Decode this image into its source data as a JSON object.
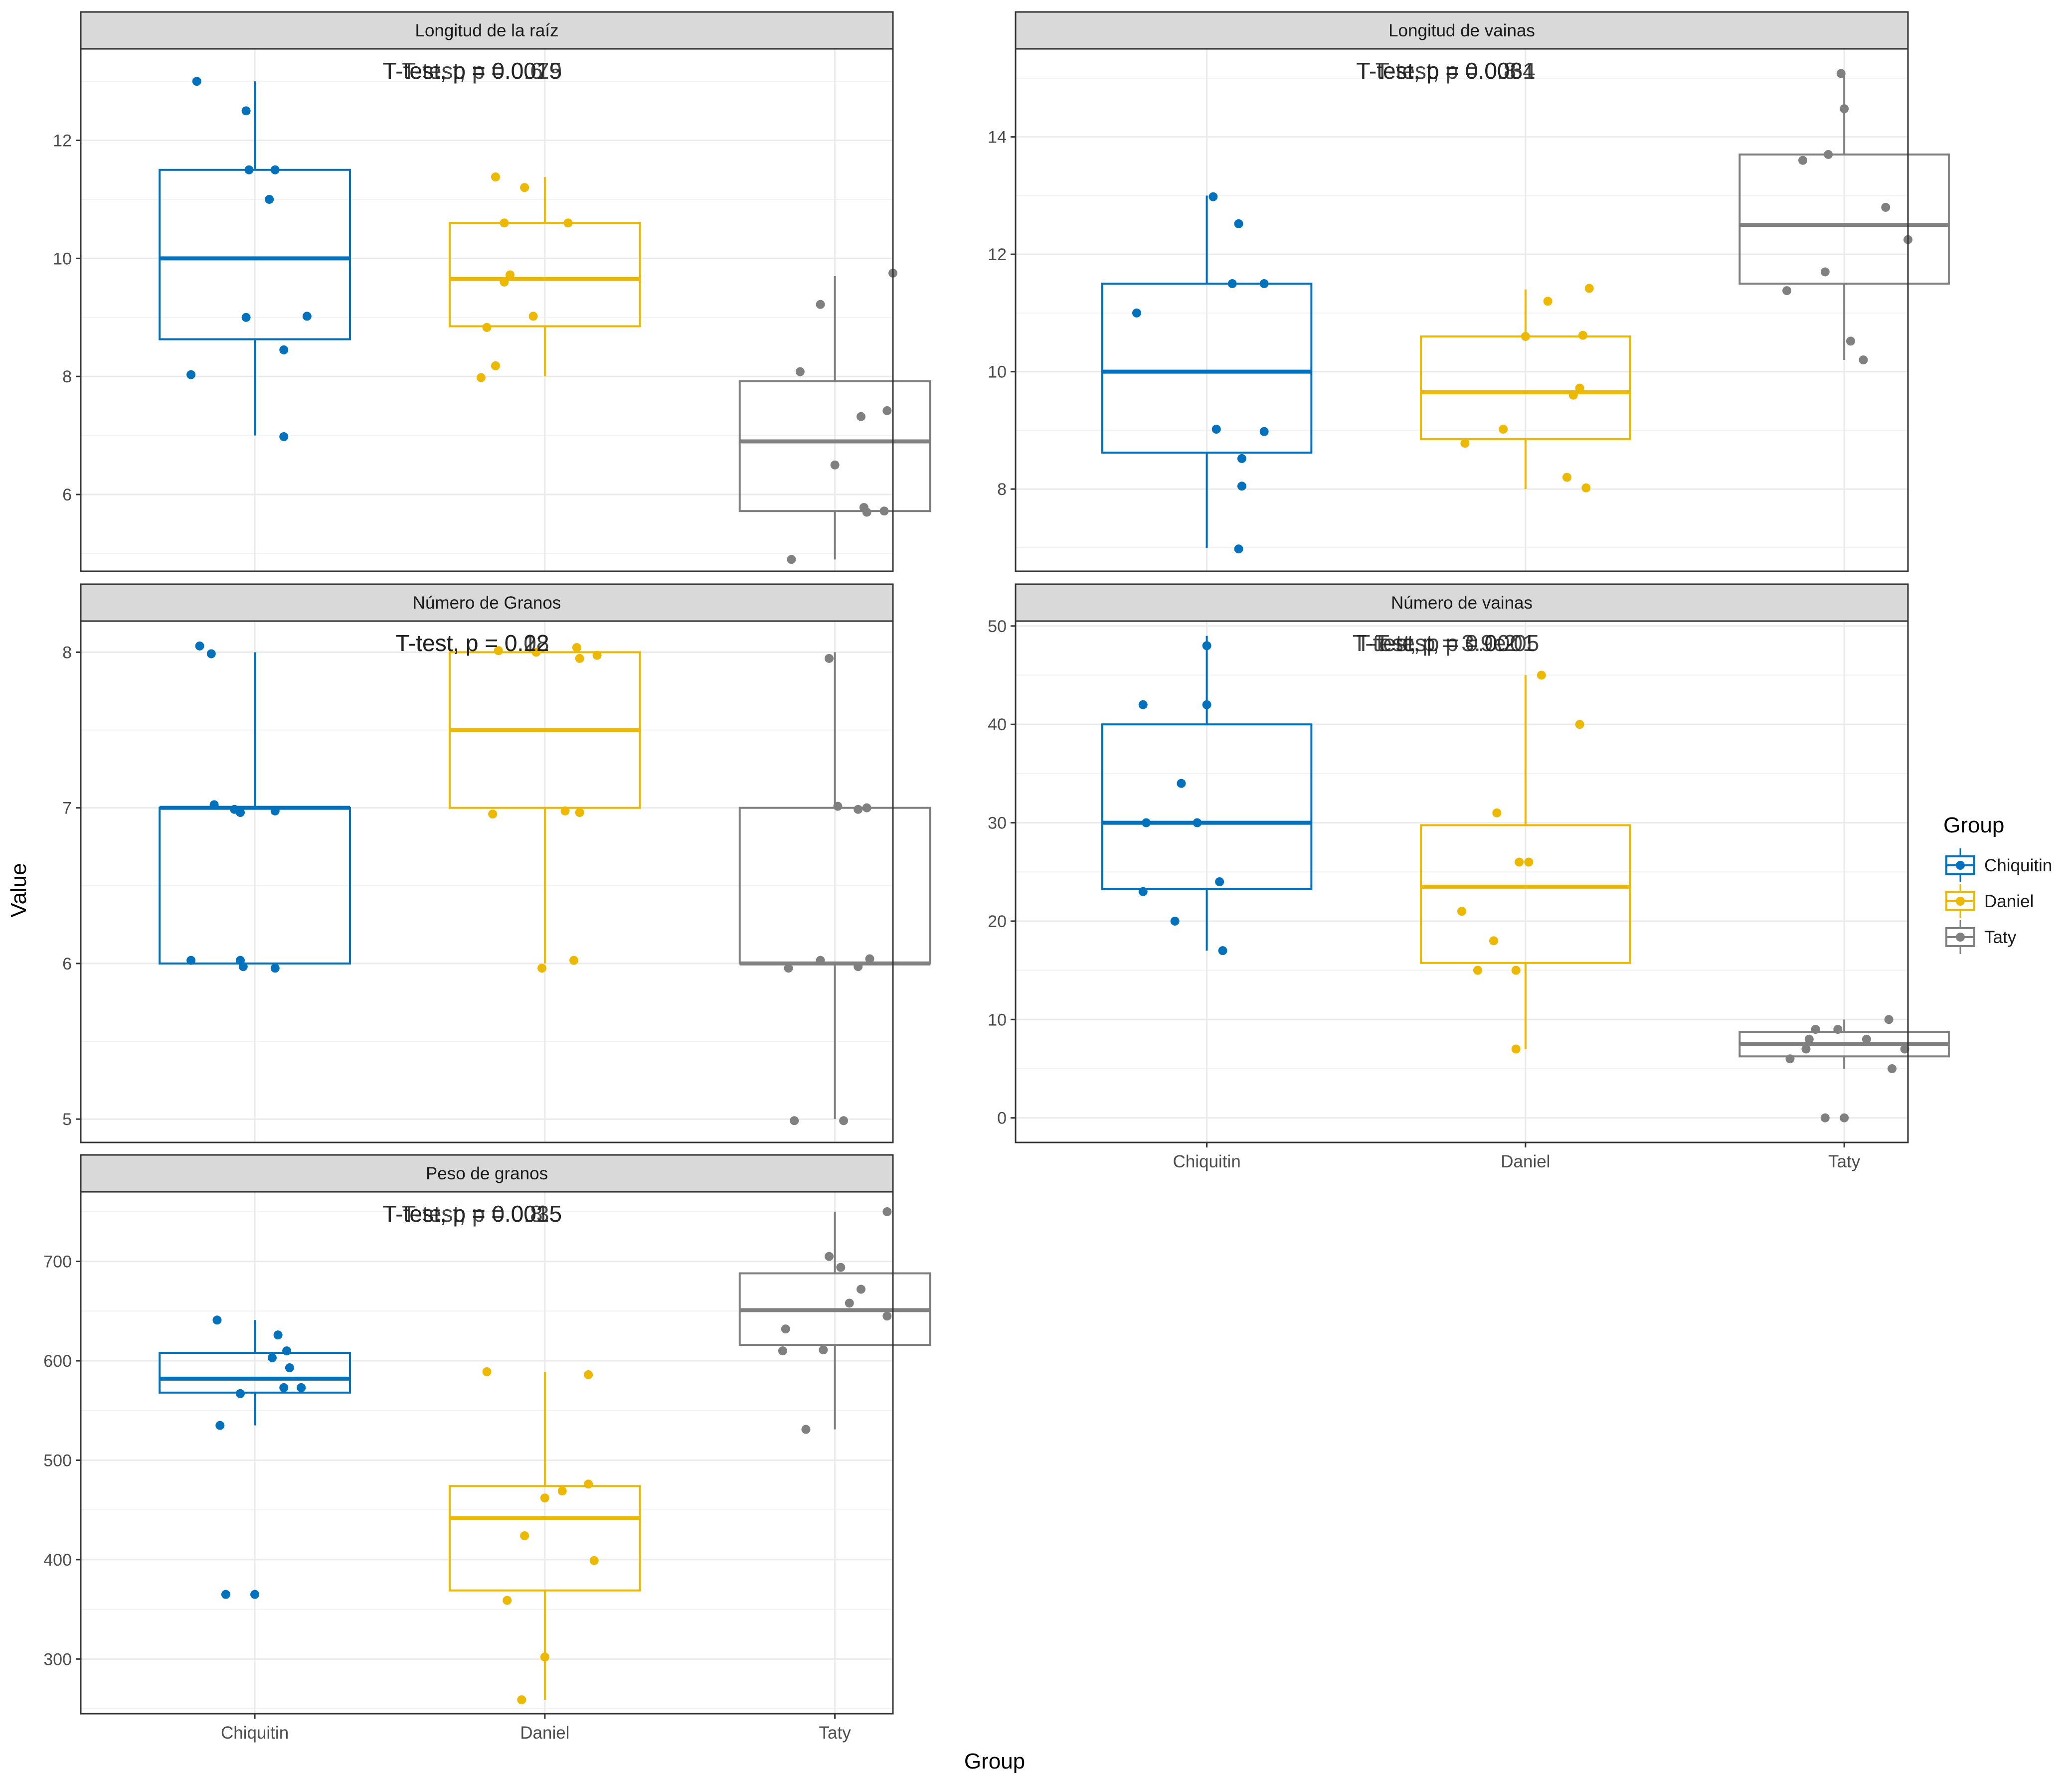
{
  "groups": [
    "Chiquitin",
    "Daniel",
    "Taty"
  ],
  "colors": {
    "Chiquitin": "#0072BD",
    "Daniel": "#EDB800",
    "Taty": "#808080"
  },
  "axis": {
    "xlabel": "Group",
    "ylabel": "Value"
  },
  "legend": {
    "title": "Group",
    "placement": "right"
  },
  "chart_data": [
    {
      "type": "boxplot",
      "panel": 0,
      "title": "Longitud de la raíz",
      "ylim": [
        4.7,
        13.55
      ],
      "yticks": [
        6,
        8,
        10,
        12
      ],
      "annotations": [
        "T-test, p = 0.0015",
        "T-test, p = 0.0079",
        "T-test, p = 0.6"
      ],
      "boxes": [
        {
          "group": "Chiquitin",
          "q1": 8.63,
          "median": 10.0,
          "q3": 11.5,
          "whisker_low": 7.0,
          "whisker_high": 13.0
        },
        {
          "group": "Daniel",
          "q1": 8.85,
          "median": 9.65,
          "q3": 10.6,
          "whisker_low": 8.0,
          "whisker_high": 11.38
        },
        {
          "group": "Taty",
          "q1": 5.72,
          "median": 6.9,
          "q3": 7.92,
          "whisker_low": 4.9,
          "whisker_high": 9.7
        }
      ],
      "points": [
        {
          "group": "Chiquitin",
          "x": 0.8,
          "y": 13.0
        },
        {
          "group": "Chiquitin",
          "x": 0.97,
          "y": 12.5
        },
        {
          "group": "Chiquitin",
          "x": 0.98,
          "y": 11.5
        },
        {
          "group": "Chiquitin",
          "x": 1.07,
          "y": 11.5
        },
        {
          "group": "Chiquitin",
          "x": 1.05,
          "y": 11.0
        },
        {
          "group": "Chiquitin",
          "x": 0.97,
          "y": 9.0
        },
        {
          "group": "Chiquitin",
          "x": 1.18,
          "y": 9.02
        },
        {
          "group": "Chiquitin",
          "x": 1.1,
          "y": 8.45
        },
        {
          "group": "Chiquitin",
          "x": 0.78,
          "y": 8.03
        },
        {
          "group": "Chiquitin",
          "x": 1.1,
          "y": 6.98
        },
        {
          "group": "Daniel",
          "x": 1.83,
          "y": 11.38
        },
        {
          "group": "Daniel",
          "x": 1.93,
          "y": 11.2
        },
        {
          "group": "Daniel",
          "x": 1.86,
          "y": 10.6
        },
        {
          "group": "Daniel",
          "x": 2.08,
          "y": 10.6
        },
        {
          "group": "Daniel",
          "x": 1.88,
          "y": 9.72
        },
        {
          "group": "Daniel",
          "x": 1.86,
          "y": 9.6
        },
        {
          "group": "Daniel",
          "x": 1.96,
          "y": 9.02
        },
        {
          "group": "Daniel",
          "x": 1.8,
          "y": 8.83
        },
        {
          "group": "Daniel",
          "x": 1.83,
          "y": 8.18
        },
        {
          "group": "Daniel",
          "x": 1.78,
          "y": 7.98
        },
        {
          "group": "Taty",
          "x": 2.95,
          "y": 9.22
        },
        {
          "group": "Taty",
          "x": 3.2,
          "y": 9.75
        },
        {
          "group": "Taty",
          "x": 2.88,
          "y": 8.08
        },
        {
          "group": "Taty",
          "x": 3.18,
          "y": 7.42
        },
        {
          "group": "Taty",
          "x": 3.09,
          "y": 7.32
        },
        {
          "group": "Taty",
          "x": 3.0,
          "y": 6.5
        },
        {
          "group": "Taty",
          "x": 3.1,
          "y": 5.78
        },
        {
          "group": "Taty",
          "x": 3.17,
          "y": 5.72
        },
        {
          "group": "Taty",
          "x": 3.11,
          "y": 5.7
        },
        {
          "group": "Taty",
          "x": 2.85,
          "y": 4.9
        }
      ]
    },
    {
      "type": "boxplot",
      "panel": 1,
      "title": "Longitud de vainas",
      "ylim": [
        6.6,
        15.5
      ],
      "yticks": [
        8,
        10,
        12,
        14
      ],
      "annotations": [
        "T-test, p = 0.0034",
        "T-test, p = 0.0061",
        "T-test, p = 0.8"
      ],
      "boxes": [
        {
          "group": "Chiquitin",
          "q1": 8.62,
          "median": 10.0,
          "q3": 11.5,
          "whisker_low": 7.0,
          "whisker_high": 13.0
        },
        {
          "group": "Daniel",
          "q1": 8.85,
          "median": 9.65,
          "q3": 10.6,
          "whisker_low": 8.0,
          "whisker_high": 11.4
        },
        {
          "group": "Taty",
          "q1": 11.5,
          "median": 12.5,
          "q3": 13.7,
          "whisker_low": 10.2,
          "whisker_high": 15.1
        }
      ],
      "points": [
        {
          "group": "Chiquitin",
          "x": 1.02,
          "y": 12.98
        },
        {
          "group": "Chiquitin",
          "x": 1.1,
          "y": 12.52
        },
        {
          "group": "Chiquitin",
          "x": 1.08,
          "y": 11.5
        },
        {
          "group": "Chiquitin",
          "x": 1.18,
          "y": 11.5
        },
        {
          "group": "Chiquitin",
          "x": 0.78,
          "y": 11.0
        },
        {
          "group": "Chiquitin",
          "x": 1.03,
          "y": 9.02
        },
        {
          "group": "Chiquitin",
          "x": 1.18,
          "y": 8.98
        },
        {
          "group": "Chiquitin",
          "x": 1.11,
          "y": 8.52
        },
        {
          "group": "Chiquitin",
          "x": 1.11,
          "y": 8.05
        },
        {
          "group": "Chiquitin",
          "x": 1.1,
          "y": 6.98
        },
        {
          "group": "Daniel",
          "x": 2.2,
          "y": 11.42
        },
        {
          "group": "Daniel",
          "x": 2.07,
          "y": 11.2
        },
        {
          "group": "Daniel",
          "x": 2.0,
          "y": 10.6
        },
        {
          "group": "Daniel",
          "x": 2.18,
          "y": 10.62
        },
        {
          "group": "Daniel",
          "x": 2.17,
          "y": 9.72
        },
        {
          "group": "Daniel",
          "x": 2.15,
          "y": 9.6
        },
        {
          "group": "Daniel",
          "x": 1.93,
          "y": 9.02
        },
        {
          "group": "Daniel",
          "x": 1.81,
          "y": 8.78
        },
        {
          "group": "Daniel",
          "x": 2.13,
          "y": 8.2
        },
        {
          "group": "Daniel",
          "x": 2.19,
          "y": 8.02
        },
        {
          "group": "Taty",
          "x": 2.99,
          "y": 15.08
        },
        {
          "group": "Taty",
          "x": 3.0,
          "y": 14.48
        },
        {
          "group": "Taty",
          "x": 2.87,
          "y": 13.6
        },
        {
          "group": "Taty",
          "x": 2.95,
          "y": 13.7
        },
        {
          "group": "Taty",
          "x": 3.13,
          "y": 12.8
        },
        {
          "group": "Taty",
          "x": 3.2,
          "y": 12.25
        },
        {
          "group": "Taty",
          "x": 2.94,
          "y": 11.7
        },
        {
          "group": "Taty",
          "x": 2.82,
          "y": 11.38
        },
        {
          "group": "Taty",
          "x": 3.02,
          "y": 10.52
        },
        {
          "group": "Taty",
          "x": 3.06,
          "y": 10.2
        }
      ]
    },
    {
      "type": "boxplot",
      "panel": 2,
      "title": "Número de Granos",
      "ylim": [
        4.85,
        8.2
      ],
      "yticks": [
        5,
        6,
        7,
        8
      ],
      "annotations": [
        "T-test, p = 0.08",
        "T-test, p = 0.22",
        "T-test, p = 0.12"
      ],
      "boxes": [
        {
          "group": "Chiquitin",
          "q1": 6.0,
          "median": 7.0,
          "q3": 7.0,
          "whisker_low": 6.0,
          "whisker_high": 8.0
        },
        {
          "group": "Daniel",
          "q1": 7.0,
          "median": 7.5,
          "q3": 8.0,
          "whisker_low": 6.0,
          "whisker_high": 8.0
        },
        {
          "group": "Taty",
          "q1": 6.0,
          "median": 6.0,
          "q3": 7.0,
          "whisker_low": 5.0,
          "whisker_high": 8.0
        }
      ],
      "points": [
        {
          "group": "Chiquitin",
          "x": 0.81,
          "y": 8.04
        },
        {
          "group": "Chiquitin",
          "x": 0.86,
          "y": 7.02
        },
        {
          "group": "Chiquitin",
          "x": 0.93,
          "y": 6.99
        },
        {
          "group": "Chiquitin",
          "x": 0.95,
          "y": 6.97
        },
        {
          "group": "Chiquitin",
          "x": 1.07,
          "y": 6.98
        },
        {
          "group": "Chiquitin",
          "x": 0.78,
          "y": 6.02
        },
        {
          "group": "Chiquitin",
          "x": 0.95,
          "y": 6.02
        },
        {
          "group": "Chiquitin",
          "x": 0.96,
          "y": 5.98
        },
        {
          "group": "Chiquitin",
          "x": 1.07,
          "y": 5.97
        },
        {
          "group": "Chiquitin",
          "x": 0.85,
          "y": 7.99
        },
        {
          "group": "Daniel",
          "x": 1.84,
          "y": 8.01
        },
        {
          "group": "Daniel",
          "x": 1.97,
          "y": 8.0
        },
        {
          "group": "Daniel",
          "x": 2.11,
          "y": 8.03
        },
        {
          "group": "Daniel",
          "x": 2.18,
          "y": 7.98
        },
        {
          "group": "Daniel",
          "x": 2.12,
          "y": 7.96
        },
        {
          "group": "Daniel",
          "x": 1.82,
          "y": 6.96
        },
        {
          "group": "Daniel",
          "x": 2.07,
          "y": 6.98
        },
        {
          "group": "Daniel",
          "x": 2.12,
          "y": 6.97
        },
        {
          "group": "Daniel",
          "x": 1.99,
          "y": 5.97
        },
        {
          "group": "Daniel",
          "x": 2.1,
          "y": 6.02
        },
        {
          "group": "Taty",
          "x": 2.98,
          "y": 7.96
        },
        {
          "group": "Taty",
          "x": 3.01,
          "y": 7.01
        },
        {
          "group": "Taty",
          "x": 3.08,
          "y": 6.99
        },
        {
          "group": "Taty",
          "x": 3.11,
          "y": 7.0
        },
        {
          "group": "Taty",
          "x": 2.84,
          "y": 5.97
        },
        {
          "group": "Taty",
          "x": 2.95,
          "y": 6.02
        },
        {
          "group": "Taty",
          "x": 3.08,
          "y": 5.98
        },
        {
          "group": "Taty",
          "x": 3.12,
          "y": 6.03
        },
        {
          "group": "Taty",
          "x": 2.86,
          "y": 4.99
        },
        {
          "group": "Taty",
          "x": 3.03,
          "y": 4.99
        }
      ]
    },
    {
      "type": "boxplot",
      "panel": 3,
      "title": "Número de vainas",
      "ylim": [
        -2.5,
        50.5
      ],
      "yticks": [
        0,
        10,
        20,
        30,
        40,
        50
      ],
      "annotations": [
        "T-test, p = 0.2",
        "T-test, p = 3.9e-05",
        "T-test, p = 0.0001"
      ],
      "boxes": [
        {
          "group": "Chiquitin",
          "q1": 23.25,
          "median": 30.0,
          "q3": 40.0,
          "whisker_low": 17.0,
          "whisker_high": 49.0
        },
        {
          "group": "Daniel",
          "q1": 15.75,
          "median": 23.5,
          "q3": 29.75,
          "whisker_low": 7.0,
          "whisker_high": 45.0
        },
        {
          "group": "Taty",
          "q1": 6.25,
          "median": 7.5,
          "q3": 8.75,
          "whisker_low": 5.0,
          "whisker_high": 10.0
        }
      ],
      "points": [
        {
          "group": "Chiquitin",
          "x": 0.8,
          "y": 42.0
        },
        {
          "group": "Chiquitin",
          "x": 1.0,
          "y": 42.0
        },
        {
          "group": "Chiquitin",
          "x": 0.92,
          "y": 34.0
        },
        {
          "group": "Chiquitin",
          "x": 0.81,
          "y": 30.0
        },
        {
          "group": "Chiquitin",
          "x": 0.97,
          "y": 30.0
        },
        {
          "group": "Chiquitin",
          "x": 1.04,
          "y": 24.0
        },
        {
          "group": "Chiquitin",
          "x": 0.8,
          "y": 23.0
        },
        {
          "group": "Chiquitin",
          "x": 0.9,
          "y": 20.0
        },
        {
          "group": "Chiquitin",
          "x": 1.05,
          "y": 17.0
        },
        {
          "group": "Chiquitin",
          "x": 1.0,
          "y": 48.0
        },
        {
          "group": "Daniel",
          "x": 2.05,
          "y": 45.0
        },
        {
          "group": "Daniel",
          "x": 2.17,
          "y": 40.0
        },
        {
          "group": "Daniel",
          "x": 1.91,
          "y": 31.0
        },
        {
          "group": "Daniel",
          "x": 1.98,
          "y": 26.0
        },
        {
          "group": "Daniel",
          "x": 2.01,
          "y": 26.0
        },
        {
          "group": "Daniel",
          "x": 1.8,
          "y": 21.0
        },
        {
          "group": "Daniel",
          "x": 1.9,
          "y": 18.0
        },
        {
          "group": "Daniel",
          "x": 1.85,
          "y": 15.0
        },
        {
          "group": "Daniel",
          "x": 1.97,
          "y": 15.0
        },
        {
          "group": "Daniel",
          "x": 1.97,
          "y": 7.0
        },
        {
          "group": "Taty",
          "x": 3.14,
          "y": 10.0
        },
        {
          "group": "Taty",
          "x": 2.91,
          "y": 9.0
        },
        {
          "group": "Taty",
          "x": 2.98,
          "y": 9.0
        },
        {
          "group": "Taty",
          "x": 2.89,
          "y": 8.0
        },
        {
          "group": "Taty",
          "x": 3.07,
          "y": 8.0
        },
        {
          "group": "Taty",
          "x": 2.88,
          "y": 7.0
        },
        {
          "group": "Taty",
          "x": 3.19,
          "y": 7.0
        },
        {
          "group": "Taty",
          "x": 2.83,
          "y": 6.0
        },
        {
          "group": "Taty",
          "x": 3.15,
          "y": 5.0
        },
        {
          "group": "Taty",
          "x": 2.94,
          "y": 0.0
        },
        {
          "group": "Taty",
          "x": 3.0,
          "y": 0.0
        }
      ]
    },
    {
      "type": "boxplot",
      "panel": 4,
      "title": "Peso de granos",
      "ylim": [
        245,
        770
      ],
      "yticks": [
        300,
        400,
        500,
        600,
        700
      ],
      "annotations": [
        "T-test, p = 0.8",
        "T-test, p = 0.0035",
        "T-test, p = 0.0015"
      ],
      "boxes": [
        {
          "group": "Chiquitin",
          "q1": 568,
          "median": 582,
          "q3": 608,
          "whisker_low": 535,
          "whisker_high": 641
        },
        {
          "group": "Daniel",
          "q1": 369,
          "median": 442,
          "q3": 474,
          "whisker_low": 259,
          "whisker_high": 589
        },
        {
          "group": "Taty",
          "q1": 616,
          "median": 651,
          "q3": 688,
          "whisker_low": 531,
          "whisker_high": 750
        }
      ],
      "points": [
        {
          "group": "Chiquitin",
          "x": 0.87,
          "y": 641
        },
        {
          "group": "Chiquitin",
          "x": 1.08,
          "y": 626
        },
        {
          "group": "Chiquitin",
          "x": 1.11,
          "y": 610
        },
        {
          "group": "Chiquitin",
          "x": 1.06,
          "y": 603
        },
        {
          "group": "Chiquitin",
          "x": 1.12,
          "y": 593
        },
        {
          "group": "Chiquitin",
          "x": 1.1,
          "y": 573
        },
        {
          "group": "Chiquitin",
          "x": 1.16,
          "y": 573
        },
        {
          "group": "Chiquitin",
          "x": 0.95,
          "y": 567
        },
        {
          "group": "Chiquitin",
          "x": 0.88,
          "y": 535
        },
        {
          "group": "Chiquitin",
          "x": 0.9,
          "y": 365
        },
        {
          "group": "Chiquitin",
          "x": 1.0,
          "y": 365
        },
        {
          "group": "Daniel",
          "x": 1.8,
          "y": 589
        },
        {
          "group": "Daniel",
          "x": 2.15,
          "y": 586
        },
        {
          "group": "Daniel",
          "x": 2.15,
          "y": 476
        },
        {
          "group": "Daniel",
          "x": 2.06,
          "y": 469
        },
        {
          "group": "Daniel",
          "x": 2.0,
          "y": 462
        },
        {
          "group": "Daniel",
          "x": 1.93,
          "y": 424
        },
        {
          "group": "Daniel",
          "x": 2.17,
          "y": 399
        },
        {
          "group": "Daniel",
          "x": 1.87,
          "y": 359
        },
        {
          "group": "Daniel",
          "x": 2.0,
          "y": 302
        },
        {
          "group": "Daniel",
          "x": 1.92,
          "y": 259
        },
        {
          "group": "Taty",
          "x": 3.18,
          "y": 750
        },
        {
          "group": "Taty",
          "x": 2.98,
          "y": 705
        },
        {
          "group": "Taty",
          "x": 3.02,
          "y": 694
        },
        {
          "group": "Taty",
          "x": 3.09,
          "y": 672
        },
        {
          "group": "Taty",
          "x": 3.05,
          "y": 658
        },
        {
          "group": "Taty",
          "x": 3.18,
          "y": 645
        },
        {
          "group": "Taty",
          "x": 2.83,
          "y": 632
        },
        {
          "group": "Taty",
          "x": 2.82,
          "y": 610
        },
        {
          "group": "Taty",
          "x": 2.96,
          "y": 611
        },
        {
          "group": "Taty",
          "x": 2.9,
          "y": 531
        }
      ]
    }
  ]
}
